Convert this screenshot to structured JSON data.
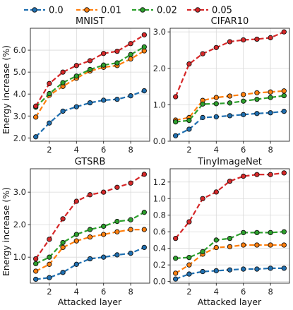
{
  "colors": {
    "0.0": "#1f6fb0",
    "0.01": "#ff7f0e",
    "0.02": "#2ca02c",
    "0.05": "#d62728"
  },
  "legend": [
    "0.0",
    "0.01",
    "0.02",
    "0.05"
  ],
  "xlabel": "Attacked layer",
  "ylabel": "Energy increase (%)",
  "chart_data": [
    {
      "type": "line",
      "title": "MNIST",
      "x": [
        1,
        2,
        3,
        4,
        5,
        6,
        7,
        8,
        9
      ],
      "ylim": [
        1.85,
        7.0
      ],
      "yticks": [
        2.0,
        3.0,
        4.0,
        5.0,
        6.0
      ],
      "xticks": [
        2,
        4,
        6,
        8
      ],
      "grid": true,
      "series": [
        {
          "name": "0.0",
          "values": [
            2.05,
            2.68,
            3.22,
            3.42,
            3.6,
            3.72,
            3.76,
            3.92,
            4.15
          ]
        },
        {
          "name": "0.01",
          "values": [
            2.95,
            3.95,
            4.35,
            4.72,
            5.05,
            5.22,
            5.3,
            5.6,
            5.97
          ]
        },
        {
          "name": "0.02",
          "values": [
            3.4,
            4.02,
            4.52,
            4.82,
            5.12,
            5.32,
            5.42,
            5.8,
            6.15
          ]
        },
        {
          "name": "0.05",
          "values": [
            3.45,
            4.48,
            5.0,
            5.3,
            5.52,
            5.85,
            5.95,
            6.3,
            6.7
          ]
        }
      ]
    },
    {
      "type": "line",
      "title": "CIFAR10",
      "x": [
        1,
        2,
        3,
        4,
        5,
        6,
        7,
        8,
        9
      ],
      "ylim": [
        0.0,
        3.1
      ],
      "yticks": [
        0.0,
        1.0,
        2.0,
        3.0
      ],
      "xticks": [
        2,
        4,
        6,
        8
      ],
      "grid": true,
      "series": [
        {
          "name": "0.0",
          "values": [
            0.15,
            0.33,
            0.65,
            0.67,
            0.7,
            0.73,
            0.76,
            0.78,
            0.82
          ]
        },
        {
          "name": "0.01",
          "values": [
            0.58,
            0.65,
            1.12,
            1.2,
            1.24,
            1.28,
            1.33,
            1.35,
            1.38
          ]
        },
        {
          "name": "0.02",
          "values": [
            0.53,
            0.57,
            1.02,
            1.03,
            1.05,
            1.1,
            1.15,
            1.2,
            1.25
          ]
        },
        {
          "name": "0.05",
          "values": [
            1.22,
            2.12,
            2.4,
            2.57,
            2.73,
            2.78,
            2.8,
            2.84,
            3.0
          ]
        }
      ]
    },
    {
      "type": "line",
      "title": "GTSRB",
      "x": [
        1,
        2,
        3,
        4,
        5,
        6,
        7,
        8,
        9
      ],
      "ylim": [
        0.2,
        3.72
      ],
      "yticks": [
        1.0,
        2.0,
        3.0
      ],
      "xticks": [
        2,
        4,
        6,
        8
      ],
      "grid": true,
      "series": [
        {
          "name": "0.0",
          "values": [
            0.32,
            0.37,
            0.53,
            0.78,
            0.95,
            1.0,
            1.07,
            1.12,
            1.3
          ]
        },
        {
          "name": "0.01",
          "values": [
            0.57,
            0.78,
            1.3,
            1.5,
            1.62,
            1.7,
            1.78,
            1.85,
            1.85
          ]
        },
        {
          "name": "0.02",
          "values": [
            0.8,
            1.0,
            1.45,
            1.7,
            1.85,
            1.95,
            2.1,
            2.15,
            2.38
          ]
        },
        {
          "name": "0.05",
          "values": [
            0.95,
            1.55,
            2.18,
            2.72,
            2.92,
            3.0,
            3.15,
            3.28,
            3.55
          ]
        }
      ]
    },
    {
      "type": "line",
      "title": "TinyImageNet",
      "x": [
        1,
        2,
        3,
        4,
        5,
        6,
        7,
        8,
        9
      ],
      "ylim": [
        -0.02,
        1.36
      ],
      "yticks": [
        0.0,
        0.2,
        0.4,
        0.6,
        0.8,
        1.0,
        1.2
      ],
      "xticks": [
        2,
        4,
        6,
        8
      ],
      "grid": true,
      "series": [
        {
          "name": "0.0",
          "values": [
            0.03,
            0.09,
            0.12,
            0.13,
            0.14,
            0.15,
            0.15,
            0.16,
            0.16
          ]
        },
        {
          "name": "0.01",
          "values": [
            0.1,
            0.2,
            0.33,
            0.41,
            0.42,
            0.44,
            0.44,
            0.44,
            0.44
          ]
        },
        {
          "name": "0.02",
          "values": [
            0.28,
            0.29,
            0.36,
            0.5,
            0.52,
            0.59,
            0.59,
            0.59,
            0.6
          ]
        },
        {
          "name": "0.05",
          "values": [
            0.52,
            0.72,
            1.0,
            1.08,
            1.21,
            1.27,
            1.29,
            1.29,
            1.31
          ]
        }
      ]
    }
  ]
}
